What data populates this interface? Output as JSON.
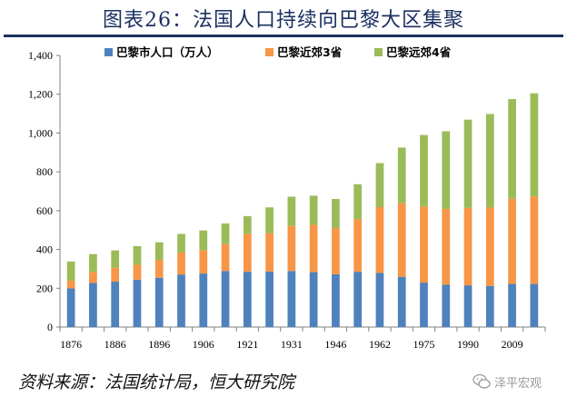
{
  "title": "图表26：法国人口持续向巴黎大区集聚",
  "source": "资料来源：法国统计局，恒大研究院",
  "watermark": "泽平宏观",
  "colors": {
    "title": "#1a3060",
    "series1": "#4f81bd",
    "series2": "#f79646",
    "series3": "#9bbb59",
    "axis": "#808080"
  },
  "chart_data": {
    "type": "bar",
    "stacked": true,
    "ylim": [
      0,
      1400
    ],
    "yticks": [
      0,
      200,
      400,
      600,
      800,
      1000,
      1200,
      1400
    ],
    "ytick_labels": [
      "0",
      "200",
      "400",
      "600",
      "800",
      "1,000",
      "1,200",
      "1,400"
    ],
    "xlabel": "",
    "ylabel": "",
    "legend_position": "top",
    "categories": [
      "1876",
      "1881",
      "1886",
      "1891",
      "1896",
      "1901",
      "1906",
      "1911",
      "1921",
      "1926",
      "1931",
      "1936",
      "1946",
      "1954",
      "1962",
      "1968",
      "1975",
      "1982",
      "1990",
      "1999",
      "2009",
      "2014"
    ],
    "shown_tick_labels": [
      "1876",
      "1886",
      "1896",
      "1906",
      "1921",
      "1931",
      "1946",
      "1962",
      "1975",
      "1990",
      "2009"
    ],
    "series": [
      {
        "name": "巴黎市人口（万人）",
        "values": [
          199,
          227,
          234,
          244,
          254,
          271,
          276,
          289,
          285,
          286,
          289,
          283,
          272,
          285,
          279,
          259,
          229,
          218,
          215,
          212,
          223,
          222
        ]
      },
      {
        "name": "巴黎近郊3省",
        "values": [
          41,
          57,
          72,
          77,
          92,
          113,
          120,
          138,
          196,
          198,
          232,
          244,
          238,
          272,
          339,
          379,
          392,
          391,
          399,
          404,
          439,
          451
        ]
      },
      {
        "name": "巴黎远郊4省",
        "values": [
          98,
          92,
          89,
          96,
          91,
          96,
          102,
          107,
          91,
          133,
          151,
          150,
          150,
          179,
          227,
          287,
          369,
          400,
          455,
          482,
          513,
          532
        ]
      }
    ]
  }
}
